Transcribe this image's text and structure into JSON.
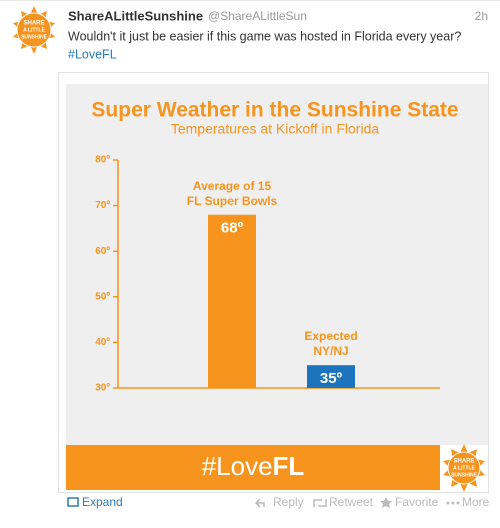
{
  "tweet": {
    "name": "ShareALittleSunshine",
    "handle": "@ShareALittleSun",
    "time": "2h",
    "text": "Wouldn't it just be easier if this game was hosted in Florida every year?",
    "hashtag": "#LoveFL",
    "logo_lines": [
      "SHARE",
      "A LITTLE",
      "SUNSHINE"
    ]
  },
  "banner": {
    "light": "#Love",
    "bold": "FL"
  },
  "actions": {
    "expand": "Expand",
    "reply": "Reply",
    "retweet": "Retweet",
    "favorite": "Favorite",
    "more": "More"
  },
  "chart_data": {
    "type": "bar",
    "title": "Super Weather in the Sunshine State",
    "subtitle": "Temperatures at Kickoff in Florida",
    "categories": [
      "Average of 15\nFL Super Bowls",
      "Expected\nNY/NJ"
    ],
    "values": [
      68,
      35
    ],
    "value_labels": [
      "68º",
      "35º"
    ],
    "colors": [
      "#f7941d",
      "#1c75bc"
    ],
    "ylim": [
      30,
      80
    ],
    "yticks": [
      {
        "value": 30,
        "label": "30º"
      },
      {
        "value": 40,
        "label": "40º"
      },
      {
        "value": 50,
        "label": "50º"
      },
      {
        "value": 60,
        "label": "60º"
      },
      {
        "value": 70,
        "label": "70º"
      },
      {
        "value": 80,
        "label": "80º"
      }
    ]
  }
}
